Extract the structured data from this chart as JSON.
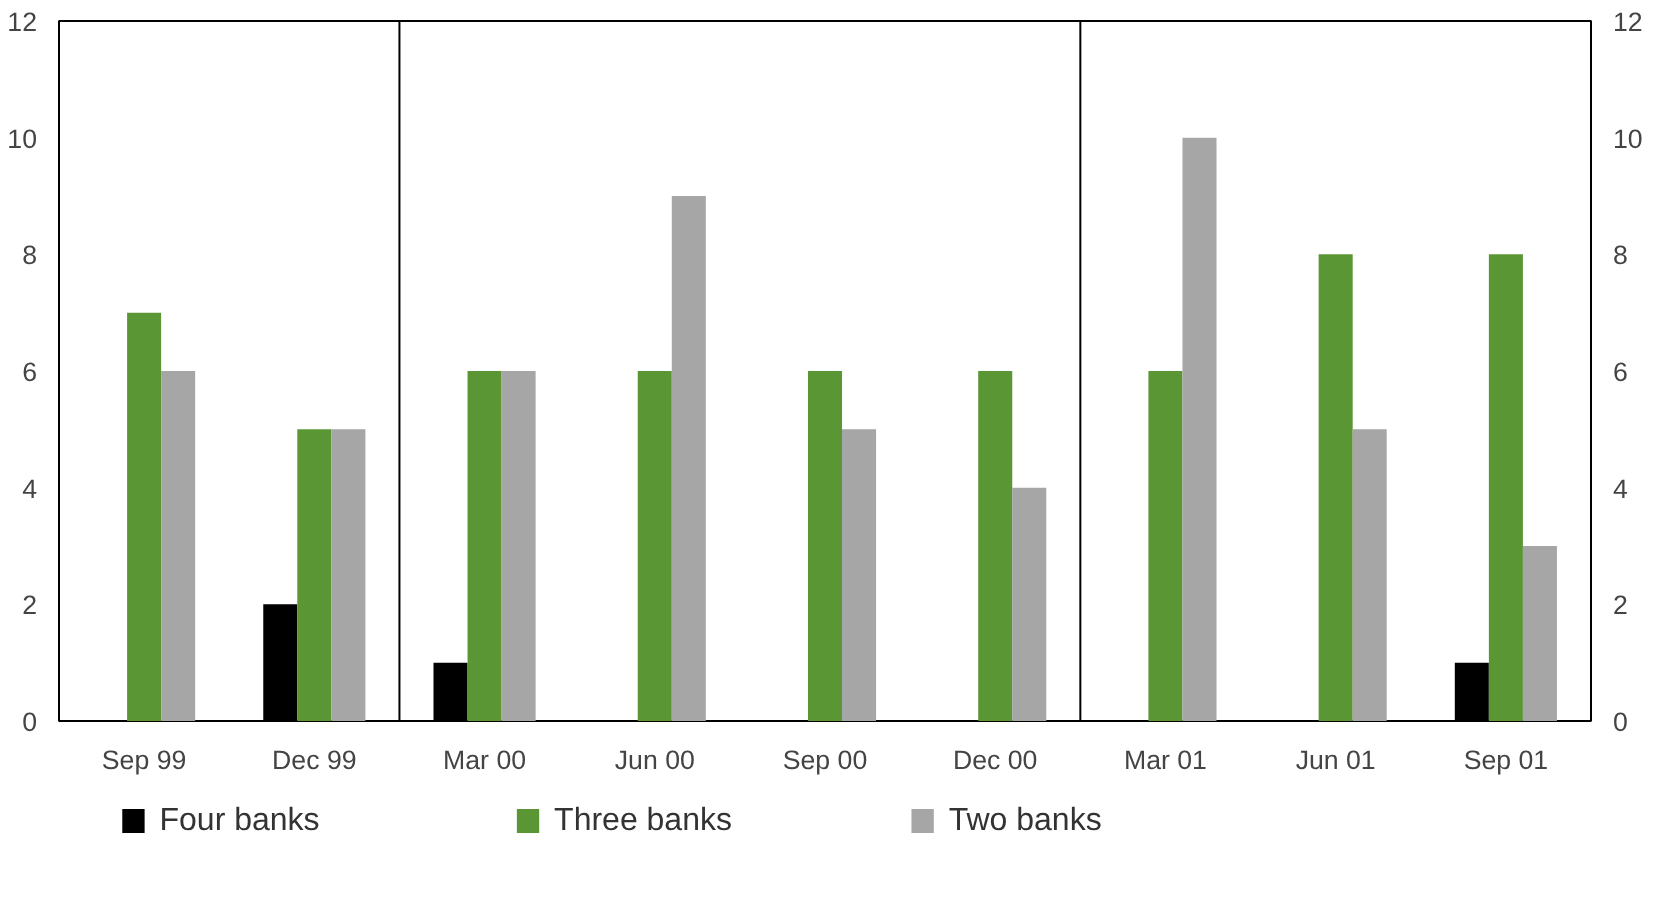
{
  "chart_data": {
    "type": "bar",
    "categories": [
      "Sep 99",
      "Dec 99",
      "Mar 00",
      "Jun 00",
      "Sep 00",
      "Dec 00",
      "Mar 01",
      "Jun 01",
      "Sep 01"
    ],
    "series": [
      {
        "name": "Four banks",
        "color": "#000000",
        "values": [
          0,
          2,
          1,
          0,
          0,
          0,
          0,
          0,
          1
        ]
      },
      {
        "name": "Three banks",
        "color": "#5b9634",
        "values": [
          7,
          5,
          6,
          6,
          6,
          6,
          6,
          8,
          8
        ]
      },
      {
        "name": "Two banks",
        "color": "#a6a6a6",
        "values": [
          6,
          5,
          6,
          9,
          5,
          4,
          10,
          5,
          3
        ]
      }
    ],
    "ylim": [
      0,
      12
    ],
    "yticks": [
      0,
      2,
      4,
      6,
      8,
      10,
      12
    ],
    "y2lim": [
      0,
      12
    ],
    "y2ticks": [
      0,
      2,
      4,
      6,
      8,
      10,
      12
    ],
    "grid": false,
    "legend": "bottom left"
  }
}
